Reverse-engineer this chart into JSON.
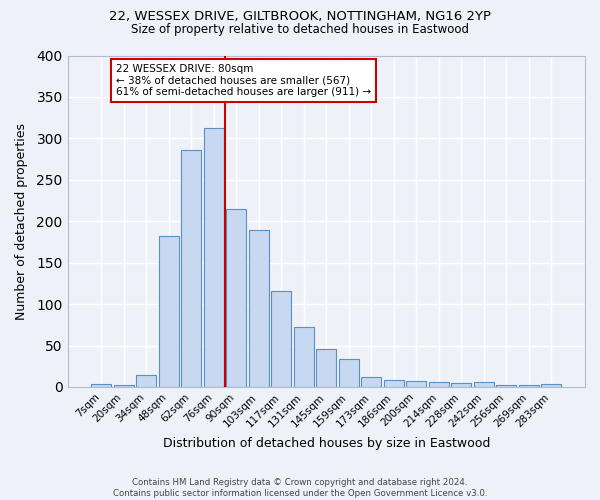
{
  "title1": "22, WESSEX DRIVE, GILTBROOK, NOTTINGHAM, NG16 2YP",
  "title2": "Size of property relative to detached houses in Eastwood",
  "xlabel": "Distribution of detached houses by size in Eastwood",
  "ylabel": "Number of detached properties",
  "bin_labels": [
    "7sqm",
    "20sqm",
    "34sqm",
    "48sqm",
    "62sqm",
    "76sqm",
    "90sqm",
    "103sqm",
    "117sqm",
    "131sqm",
    "145sqm",
    "159sqm",
    "173sqm",
    "186sqm",
    "200sqm",
    "214sqm",
    "228sqm",
    "242sqm",
    "256sqm",
    "269sqm",
    "283sqm"
  ],
  "bar_heights": [
    3,
    2,
    15,
    182,
    286,
    313,
    215,
    190,
    116,
    72,
    46,
    34,
    12,
    8,
    7,
    6,
    5,
    6,
    2,
    2,
    3
  ],
  "bar_color": "#c8d8f0",
  "bar_edge_color": "#5a8fc3",
  "vline_x_index": 5,
  "vline_color": "#cc0000",
  "annotation_text": "22 WESSEX DRIVE: 80sqm\n← 38% of detached houses are smaller (567)\n61% of semi-detached houses are larger (911) →",
  "annotation_box_color": "#ffffff",
  "annotation_box_edge_color": "#cc0000",
  "footnote": "Contains HM Land Registry data © Crown copyright and database right 2024.\nContains public sector information licensed under the Open Government Licence v3.0.",
  "bg_color": "#eef2f8",
  "grid_color": "#ffffff",
  "ylim": [
    0,
    400
  ],
  "yticks": [
    0,
    50,
    100,
    150,
    200,
    250,
    300,
    350,
    400
  ]
}
